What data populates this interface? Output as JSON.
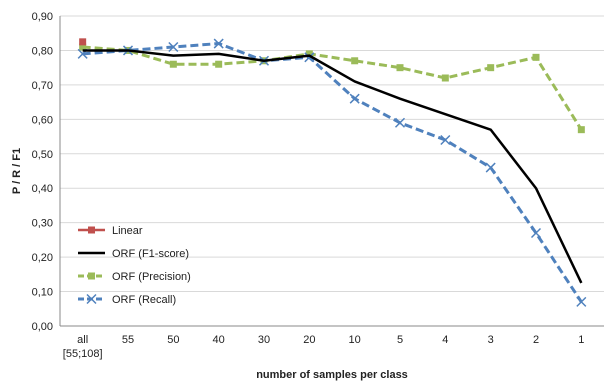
{
  "chart_data": {
    "type": "line",
    "xlabel": "number of samples per class",
    "ylabel": "P / R / F1",
    "ylim": [
      0,
      0.9
    ],
    "yticks": [
      "0,00",
      "0,10",
      "0,20",
      "0,30",
      "0,40",
      "0,50",
      "0,60",
      "0,70",
      "0,80",
      "0,90"
    ],
    "categories": [
      [
        "all",
        "[55;108]"
      ],
      [
        "55"
      ],
      [
        "50"
      ],
      [
        "40"
      ],
      [
        "30"
      ],
      [
        "20"
      ],
      [
        "10"
      ],
      [
        "5"
      ],
      [
        "4"
      ],
      [
        "3"
      ],
      [
        "2"
      ],
      [
        "1"
      ]
    ],
    "grid": "horizontal",
    "legend_position": "bottom-left",
    "series": [
      {
        "name": "Linear",
        "color": "#c0504d",
        "style": "solid",
        "marker": "square",
        "values": [
          0.825,
          null,
          null,
          null,
          null,
          null,
          null,
          null,
          null,
          null,
          null,
          null
        ]
      },
      {
        "name": "ORF (F1-score)",
        "color": "#000000",
        "style": "solid",
        "marker": "none",
        "values": [
          0.8,
          0.8,
          0.785,
          0.79,
          0.77,
          0.785,
          0.71,
          0.66,
          0.615,
          0.57,
          0.4,
          0.125
        ]
      },
      {
        "name": "ORF (Precision)",
        "color": "#9bbb59",
        "style": "dashed",
        "marker": "square",
        "values": [
          0.81,
          0.8,
          0.76,
          0.76,
          0.77,
          0.79,
          0.77,
          0.75,
          0.72,
          0.75,
          0.78,
          0.57
        ]
      },
      {
        "name": "ORF (Recall)",
        "color": "#4f81bd",
        "style": "dashed",
        "marker": "x",
        "values": [
          0.79,
          0.8,
          0.81,
          0.82,
          0.77,
          0.78,
          0.66,
          0.59,
          0.54,
          0.46,
          0.27,
          0.07
        ]
      }
    ]
  }
}
